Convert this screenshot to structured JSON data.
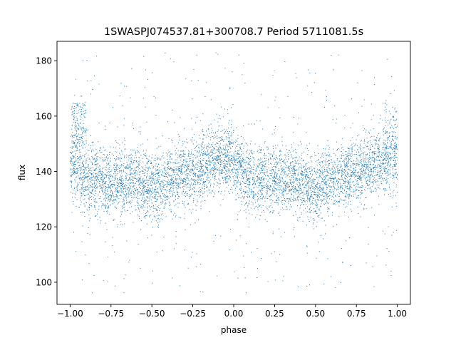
{
  "chart_data": {
    "type": "scatter",
    "title": "1SWASPJ074537.81+300708.7 Period 5711081.5s",
    "xlabel": "phase",
    "ylabel": "flux",
    "xlim": [
      -1.08,
      1.08
    ],
    "ylim": [
      92,
      187
    ],
    "grid": false,
    "legend": "none",
    "point_color": "#1f77b4",
    "x_ticks": [
      {
        "value": -1.0,
        "label": "−1.00"
      },
      {
        "value": -0.75,
        "label": "−0.75"
      },
      {
        "value": -0.5,
        "label": "−0.50"
      },
      {
        "value": -0.25,
        "label": "−0.25"
      },
      {
        "value": 0.0,
        "label": "0.00"
      },
      {
        "value": 0.25,
        "label": "0.25"
      },
      {
        "value": 0.5,
        "label": "0.50"
      },
      {
        "value": 0.75,
        "label": "0.75"
      },
      {
        "value": 1.0,
        "label": "1.00"
      }
    ],
    "y_ticks": [
      {
        "value": 100,
        "label": "100"
      },
      {
        "value": 120,
        "label": "120"
      },
      {
        "value": 140,
        "label": "140"
      },
      {
        "value": 160,
        "label": "160"
      },
      {
        "value": 180,
        "label": "180"
      }
    ],
    "phase_range": [
      -1.0,
      1.0
    ],
    "baseline_flux": [
      [
        0.0,
        143
      ],
      [
        0.05,
        140
      ],
      [
        0.1,
        137
      ],
      [
        0.2,
        136
      ],
      [
        0.3,
        136
      ],
      [
        0.4,
        137
      ],
      [
        0.5,
        134
      ],
      [
        0.6,
        137
      ],
      [
        0.7,
        139
      ],
      [
        0.8,
        141
      ],
      [
        0.9,
        144
      ],
      [
        1.0,
        145
      ]
    ],
    "flux_scatter_sd": 6,
    "outlier_range": [
      96,
      183
    ],
    "high_flux_cluster": {
      "phase": [
        -0.99,
        -0.9
      ],
      "flux": [
        148,
        165
      ]
    },
    "n_points": 7000
  }
}
